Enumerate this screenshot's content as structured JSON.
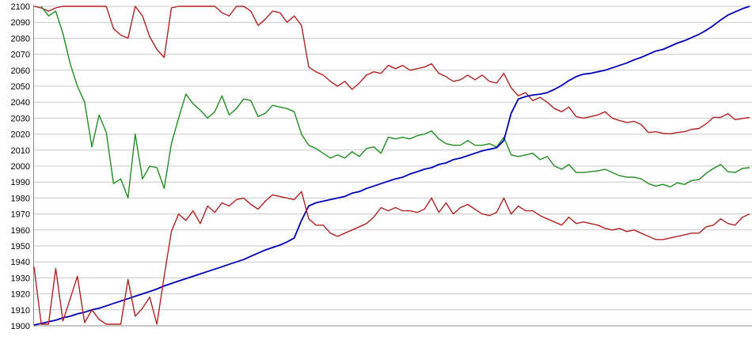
{
  "page": {
    "title": ""
  },
  "chart_data": {
    "type": "line",
    "title": "",
    "xlabel": "",
    "ylabel": "",
    "x_axis": {
      "labels_visible": false,
      "points": 100
    },
    "y_axis": {
      "min": 1900,
      "max": 2100,
      "tick_step": 10,
      "tick_labels": [
        "2100",
        "2090",
        "2080",
        "2070",
        "2060",
        "2050",
        "2040",
        "2030",
        "2020",
        "2010",
        "2000",
        "1990",
        "1980",
        "1970",
        "1960",
        "1950",
        "1940",
        "1930",
        "1920",
        "1910",
        "1900"
      ]
    },
    "grid": "horizontal",
    "legend": "none",
    "colors": {
      "red_series": "#ad2323",
      "green_series": "#228b22",
      "blue_series": "#0000b2",
      "gridline": "#c8c8c8",
      "axis": "#8c8c8c",
      "background": "#ffffff",
      "label_text": "#000000"
    },
    "series": [
      {
        "name": "upper-red-line",
        "color": "#ad2323",
        "values": [
          2100,
          2099,
          2097,
          2099,
          2100,
          2100,
          2100,
          2100,
          2100,
          2100,
          2100,
          2086,
          2082,
          2080,
          2100,
          2094,
          2081,
          2073,
          2068,
          2099,
          2100,
          2100,
          2100,
          2100,
          2100,
          2100,
          2096,
          2094,
          2100,
          2100,
          2097,
          2088,
          2092,
          2097,
          2096,
          2090,
          2094,
          2088,
          2062,
          2059,
          2057,
          2053,
          2050,
          2053,
          2048,
          2052,
          2057,
          2059,
          2058,
          2063,
          2061,
          2063,
          2060,
          2061,
          2062,
          2064,
          2058,
          2056,
          2053,
          2054,
          2057,
          2054,
          2057,
          2053,
          2052,
          2058,
          2049,
          2044,
          2046,
          2041,
          2043,
          2040,
          2036,
          2034,
          2037,
          2031,
          2030,
          2031,
          2032,
          2034,
          2030,
          2028.5,
          2027.3,
          2028,
          2026,
          2021,
          2021.5,
          2020.5,
          2020.2,
          2021,
          2021.5,
          2023,
          2023.5,
          2026.5,
          2030.5,
          2030.5,
          2032.8,
          2029,
          2029.8,
          2030.5
        ]
      },
      {
        "name": "green-line",
        "color": "#228b22",
        "values": [
          null,
          2100,
          2094,
          2097,
          2083,
          2064,
          2050,
          2040,
          2012,
          2032,
          2021,
          1989,
          1992,
          1980,
          2020,
          1992,
          2000,
          1999,
          1986,
          2014,
          2030,
          2045,
          2039,
          2035,
          2030,
          2034,
          2044,
          2032,
          2036,
          2042,
          2041,
          2031,
          2033,
          2038,
          2037,
          2036,
          2034,
          2020,
          2013,
          2011,
          2008,
          2005,
          2007,
          2005,
          2009,
          2006,
          2011,
          2012,
          2008,
          2018,
          2017,
          2018,
          2017,
          2019,
          2020,
          2022,
          2017,
          2014,
          2013,
          2013,
          2016,
          2013,
          2013,
          2014,
          2012,
          2018,
          2007,
          2006,
          2007,
          2008,
          2004,
          2006,
          2000,
          1998,
          2001,
          1996,
          1996,
          1996.5,
          1997,
          1998,
          1996,
          1994,
          1993,
          1993,
          1992,
          1989,
          1987.5,
          1988.5,
          1987,
          1989.5,
          1988.5,
          1991,
          1991.5,
          1995.5,
          1998.5,
          2001,
          1996.5,
          1996,
          1998.5,
          1999
        ]
      },
      {
        "name": "blue-line",
        "color": "#0000b2",
        "values": [
          1900.5,
          1901.5,
          1902.5,
          1903.5,
          1905,
          1906,
          1907.5,
          1908.5,
          1910,
          1911,
          1912.5,
          1914,
          1915.5,
          1917,
          1918.5,
          1920,
          1921.5,
          1923,
          1925,
          1926.5,
          1928,
          1929.5,
          1931,
          1932.5,
          1934,
          1935.5,
          1937,
          1938.5,
          1940,
          1941.5,
          1943.5,
          1945.5,
          1947.5,
          1949,
          1950.5,
          1952.5,
          1955,
          1966,
          1975,
          1977,
          1978,
          1979,
          1980,
          1981,
          1983,
          1984,
          1986,
          1987.5,
          1989,
          1990.5,
          1992,
          1993,
          1995,
          1996.5,
          1998,
          1999,
          2001,
          2002,
          2004,
          2005,
          2006.5,
          2008,
          2009.5,
          2010.5,
          2011.5,
          2016,
          2033,
          2042,
          2043.5,
          2044.5,
          2045,
          2046,
          2048,
          2050.5,
          2053.5,
          2056,
          2057.5,
          2058,
          2059,
          2060,
          2061.5,
          2063,
          2064.5,
          2066.5,
          2068,
          2070,
          2072,
          2073,
          2075,
          2077,
          2078.5,
          2080.5,
          2082.5,
          2085,
          2088,
          2091.5,
          2094.5,
          2096.5,
          2098.5,
          2100
        ]
      },
      {
        "name": "lower-red-line",
        "color": "#ad2323",
        "values": [
          1937,
          1901,
          1901,
          1936,
          1903,
          1917,
          1931,
          1902,
          1910,
          1904,
          1901,
          1901,
          1901,
          1929,
          1906,
          1911,
          1918,
          1901,
          1931,
          1959,
          1970,
          1966,
          1972,
          1964,
          1975,
          1971,
          1977,
          1975,
          1979,
          1980,
          1976,
          1973,
          1978,
          1982,
          1981,
          1980,
          1979,
          1984,
          1967,
          1963,
          1963,
          1958,
          1956,
          1958,
          1960,
          1962,
          1964,
          1968,
          1974,
          1972,
          1974,
          1972,
          1972,
          1971,
          1973,
          1980,
          1971,
          1977,
          1970,
          1974,
          1976,
          1973,
          1970,
          1969,
          1971,
          1980,
          1970,
          1975,
          1972,
          1972,
          1969,
          1967,
          1965,
          1963,
          1968,
          1964,
          1965,
          1964,
          1963,
          1961,
          1960,
          1961,
          1959,
          1960,
          1958,
          1956,
          1954,
          1954,
          1955,
          1956,
          1957,
          1958,
          1958,
          1962,
          1963,
          1967,
          1964,
          1963,
          1968,
          1970
        ]
      }
    ]
  }
}
